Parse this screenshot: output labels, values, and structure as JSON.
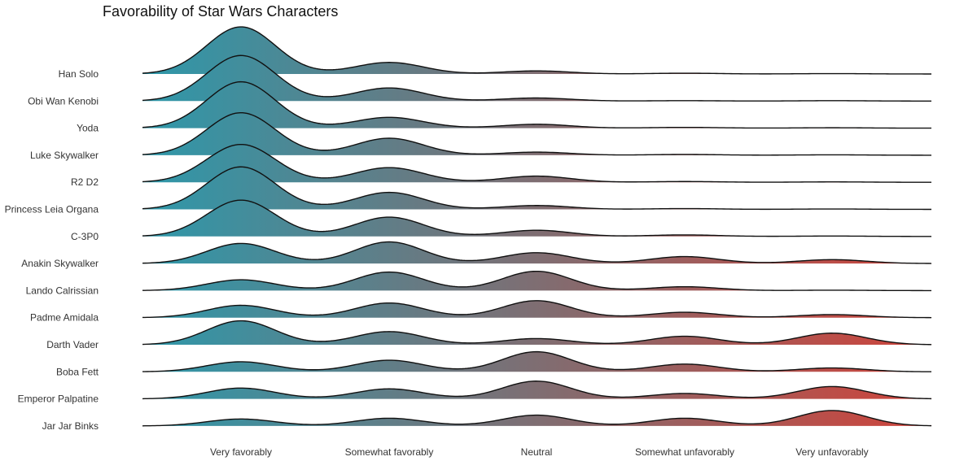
{
  "chart_data": {
    "type": "ridgeline",
    "title": "Favorability of Star Wars Characters",
    "xlabel": "",
    "ylabel": "",
    "grid": false,
    "legend": "none",
    "gradient_colors": [
      "#2e98aa",
      "#d0433a"
    ],
    "categories": [
      "Very favorably",
      "Somewhat favorably",
      "Neutral",
      "Somewhat unfavorably",
      "Very unfavorably"
    ],
    "series": [
      {
        "name": "Han Solo",
        "values": [
          0.61,
          0.15,
          0.04,
          0.01,
          0.005
        ]
      },
      {
        "name": "Obi Wan Kenobi",
        "values": [
          0.59,
          0.17,
          0.04,
          0.005,
          0.005
        ]
      },
      {
        "name": "Yoda",
        "values": [
          0.6,
          0.14,
          0.05,
          0.01,
          0.005
        ]
      },
      {
        "name": "Luke Skywalker",
        "values": [
          0.55,
          0.22,
          0.04,
          0.01,
          0.005
        ]
      },
      {
        "name": "R2 D2",
        "values": [
          0.49,
          0.19,
          0.08,
          0.01,
          0.005
        ]
      },
      {
        "name": "Princess Leia Organa",
        "values": [
          0.55,
          0.22,
          0.05,
          0.01,
          0.005
        ]
      },
      {
        "name": "C-3P0",
        "values": [
          0.47,
          0.25,
          0.08,
          0.02,
          0.005
        ]
      },
      {
        "name": "Anakin Skywalker",
        "values": [
          0.26,
          0.28,
          0.14,
          0.09,
          0.05
        ]
      },
      {
        "name": "Lando Calrissian",
        "values": [
          0.14,
          0.24,
          0.25,
          0.05,
          0.005
        ]
      },
      {
        "name": "Padme Amidala",
        "values": [
          0.16,
          0.19,
          0.22,
          0.07,
          0.04
        ]
      },
      {
        "name": "Darth Vader",
        "values": [
          0.31,
          0.17,
          0.08,
          0.11,
          0.15
        ]
      },
      {
        "name": "Boba Fett",
        "values": [
          0.13,
          0.15,
          0.26,
          0.1,
          0.05
        ]
      },
      {
        "name": "Emperor Palpatine",
        "values": [
          0.14,
          0.13,
          0.23,
          0.07,
          0.16
        ]
      },
      {
        "name": "Jar Jar Binks",
        "values": [
          0.09,
          0.1,
          0.14,
          0.1,
          0.2
        ]
      }
    ]
  }
}
